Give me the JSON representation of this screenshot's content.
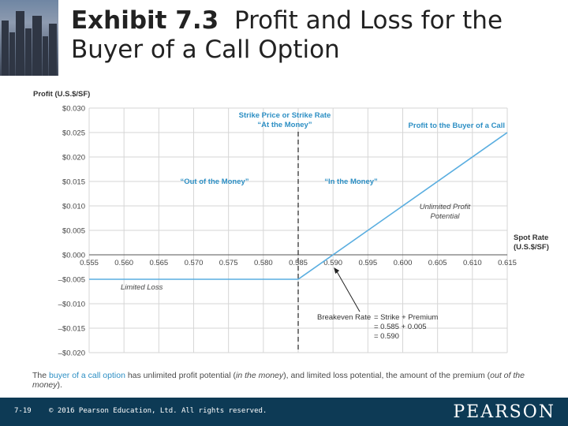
{
  "header": {
    "title_bold": "Exhibit 7.3",
    "title_rest_line1": "Profit and Loss for the",
    "title_line2": "Buyer of a Call Option"
  },
  "chart_data": {
    "type": "line",
    "title": "Profit and Loss for the Buyer of a Call Option",
    "ylabel": "Profit (U.S.$/SF)",
    "xlabel": "Spot Rate (U.S.$/SF)",
    "xlim": [
      0.555,
      0.615
    ],
    "ylim": [
      -0.02,
      0.03
    ],
    "x_ticks": [
      0.555,
      0.56,
      0.565,
      0.57,
      0.575,
      0.58,
      0.585,
      0.59,
      0.595,
      0.6,
      0.605,
      0.61,
      0.615
    ],
    "x_tick_labels": [
      "0.555",
      "0.560",
      "0.565",
      "0.570",
      "0.575",
      "0.580",
      "0.585",
      "0.590",
      "0.595",
      "0.600",
      "0.605",
      "0.610",
      "0.615"
    ],
    "y_ticks": [
      0.03,
      0.025,
      0.02,
      0.015,
      0.01,
      0.005,
      0.0,
      -0.005,
      -0.01,
      -0.015,
      -0.02
    ],
    "y_tick_labels": [
      "$0.030",
      "$0.025",
      "$0.020",
      "$0.015",
      "$0.010",
      "$0.005",
      "$0.000",
      "–$0.005",
      "–$0.010",
      "–$0.015",
      "–$0.020"
    ],
    "grid": true,
    "strike": 0.585,
    "premium": 0.005,
    "series": [
      {
        "name": "Profit to the Buyer of a Call",
        "x": [
          0.555,
          0.585,
          0.615
        ],
        "y": [
          -0.005,
          -0.005,
          0.025
        ],
        "color": "#5aaee0"
      }
    ],
    "annotations": {
      "strike_line1": "Strike Price or Strike Rate",
      "strike_line2": "“At the Money”",
      "profit_label": "Profit to the Buyer of a Call",
      "out_money": "“Out of the Money”",
      "in_money": "“In the Money”",
      "unlimited_line1": "Unlimited Profit",
      "unlimited_line2": "Potential",
      "limited_loss": "Limited Loss",
      "spot_line1": "Spot Rate",
      "spot_line2": "(U.S.$/SF)",
      "breakeven_label": "Breakeven Rate",
      "breakeven_eq1": "= Strike + Premium",
      "breakeven_eq2": "= 0.585 + 0.005",
      "breakeven_eq3": "= 0.590"
    }
  },
  "caption": {
    "part1": "The ",
    "link": "buyer of a call option",
    "part2": " has unlimited profit potential (",
    "italic1": "in the money",
    "part3": "), and limited loss potential, the amount of the premium (",
    "italic2": "out of the money",
    "part4": ")."
  },
  "footer": {
    "page": "7-19",
    "copyright": "© 2016 Pearson Education, Ltd. All rights reserved.",
    "brand": "PEARSON"
  },
  "colors": {
    "line": "#5aaee0",
    "annotation": "#2d8fc4",
    "footer_bg": "#0d3a55"
  }
}
